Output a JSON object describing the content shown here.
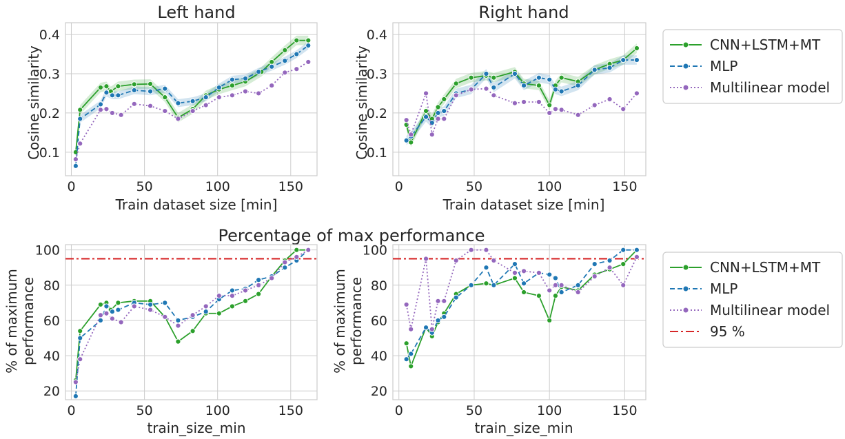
{
  "figure": {
    "suptitle": "Percentage of max performance",
    "legend_top": [
      "CNN+LSTM+MT",
      "MLP",
      "Multilinear model"
    ],
    "legend_bottom": [
      "CNN+LSTM+MT",
      "MLP",
      "Multilinear model",
      "95 %"
    ]
  },
  "colors": {
    "cnn": "#2ca02c",
    "mlp": "#1f77b4",
    "multilinear": "#9467bd",
    "threshold": "#d62728",
    "grid": "#cccccc",
    "text": "#262626"
  },
  "chart_data": [
    {
      "type": "line",
      "title": "Left hand",
      "xlabel": "Train dataset size [min]",
      "ylabel": "Cosine similarity",
      "xlim": [
        -4,
        168
      ],
      "ylim": [
        0.04,
        0.43
      ],
      "xticks": [
        0,
        50,
        100,
        150
      ],
      "yticks": [
        0.1,
        0.2,
        0.3,
        0.4
      ],
      "grid": true,
      "legend": "outside-right",
      "series": [
        {
          "name": "CNN+LSTM+MT",
          "style": "solid",
          "band": 0.012,
          "x": [
            3,
            6,
            20,
            24,
            27,
            32,
            43,
            54,
            64,
            73,
            83,
            92,
            101,
            110,
            119,
            130,
            137,
            146,
            154,
            162
          ],
          "y": [
            0.1,
            0.208,
            0.265,
            0.268,
            0.255,
            0.268,
            0.273,
            0.274,
            0.24,
            0.188,
            0.21,
            0.245,
            0.26,
            0.27,
            0.28,
            0.305,
            0.33,
            0.36,
            0.385,
            0.385
          ]
        },
        {
          "name": "MLP",
          "style": "dashed",
          "band": 0.01,
          "x": [
            3,
            6,
            20,
            24,
            28,
            32,
            43,
            54,
            64,
            73,
            83,
            92,
            101,
            110,
            119,
            128,
            137,
            146,
            154,
            162
          ],
          "y": [
            0.065,
            0.185,
            0.222,
            0.252,
            0.245,
            0.245,
            0.258,
            0.255,
            0.262,
            0.225,
            0.23,
            0.24,
            0.265,
            0.285,
            0.288,
            0.305,
            0.318,
            0.333,
            0.35,
            0.372
          ]
        },
        {
          "name": "Multilinear model",
          "style": "dotted",
          "x": [
            3,
            6,
            20,
            24,
            28,
            34,
            43,
            54,
            64,
            73,
            83,
            92,
            101,
            110,
            119,
            128,
            137,
            146,
            154,
            162
          ],
          "y": [
            0.082,
            0.122,
            0.208,
            0.21,
            0.2,
            0.195,
            0.223,
            0.218,
            0.205,
            0.185,
            0.205,
            0.22,
            0.24,
            0.245,
            0.255,
            0.25,
            0.27,
            0.303,
            0.312,
            0.33
          ]
        }
      ]
    },
    {
      "type": "line",
      "title": "Right hand",
      "xlabel": "Train dataset size [min]",
      "ylabel": "Cosine similarity",
      "xlim": [
        -4,
        164
      ],
      "ylim": [
        0.04,
        0.43
      ],
      "xticks": [
        0,
        50,
        100,
        150
      ],
      "yticks": [
        0.1,
        0.2,
        0.3,
        0.4
      ],
      "grid": true,
      "legend": "top-right-outside",
      "series": [
        {
          "name": "CNN+LSTM+MT",
          "style": "solid",
          "band": 0.012,
          "x": [
            5,
            8,
            18,
            22,
            26,
            30,
            38,
            48,
            58,
            63,
            77,
            83,
            93,
            100,
            104,
            108,
            119,
            130,
            140,
            149,
            158
          ],
          "y": [
            0.17,
            0.125,
            0.205,
            0.185,
            0.215,
            0.235,
            0.275,
            0.29,
            0.295,
            0.29,
            0.305,
            0.275,
            0.27,
            0.22,
            0.27,
            0.29,
            0.28,
            0.31,
            0.325,
            0.335,
            0.365
          ]
        },
        {
          "name": "MLP",
          "style": "dashed",
          "band": 0.012,
          "x": [
            5,
            8,
            18,
            22,
            26,
            30,
            38,
            48,
            58,
            63,
            77,
            83,
            93,
            100,
            104,
            108,
            119,
            130,
            140,
            149,
            158
          ],
          "y": [
            0.13,
            0.14,
            0.19,
            0.175,
            0.2,
            0.205,
            0.25,
            0.26,
            0.3,
            0.265,
            0.3,
            0.27,
            0.29,
            0.285,
            0.26,
            0.255,
            0.27,
            0.31,
            0.315,
            0.335,
            0.335
          ]
        },
        {
          "name": "Multilinear model",
          "style": "dotted",
          "x": [
            5,
            8,
            18,
            22,
            26,
            30,
            38,
            48,
            58,
            63,
            77,
            83,
            93,
            100,
            104,
            108,
            119,
            130,
            140,
            149,
            158
          ],
          "y": [
            0.182,
            0.145,
            0.25,
            0.145,
            0.185,
            0.185,
            0.245,
            0.26,
            0.262,
            0.245,
            0.225,
            0.228,
            0.228,
            0.2,
            0.21,
            0.208,
            0.195,
            0.22,
            0.235,
            0.21,
            0.25
          ]
        }
      ]
    },
    {
      "type": "line",
      "title": "",
      "xlabel": "train_size_min",
      "ylabel": "% of maximum performance",
      "xlim": [
        -4,
        168
      ],
      "ylim": [
        15,
        103
      ],
      "xticks": [
        0,
        50,
        100,
        150
      ],
      "yticks": [
        20,
        40,
        60,
        80,
        100
      ],
      "grid": true,
      "hline": 95,
      "legend": "outside-right",
      "series": [
        {
          "name": "CNN+LSTM+MT",
          "style": "solid",
          "x": [
            3,
            6,
            20,
            24,
            27,
            32,
            43,
            54,
            64,
            73,
            83,
            92,
            101,
            110,
            119,
            128,
            137,
            146,
            154,
            162
          ],
          "y": [
            26,
            54,
            69,
            70,
            66,
            70,
            71,
            71,
            62,
            48,
            54,
            64,
            64,
            68,
            71,
            75,
            85,
            94,
            100,
            100
          ]
        },
        {
          "name": "MLP",
          "style": "dashed",
          "x": [
            3,
            6,
            20,
            24,
            28,
            32,
            43,
            54,
            64,
            73,
            83,
            92,
            101,
            110,
            119,
            128,
            137,
            146,
            154,
            162
          ],
          "y": [
            17,
            50,
            60,
            68,
            65,
            66,
            70,
            69,
            70,
            60,
            62,
            65,
            72,
            77,
            78,
            83,
            85,
            90,
            94,
            100
          ]
        },
        {
          "name": "Multilinear model",
          "style": "dotted",
          "x": [
            3,
            6,
            20,
            24,
            28,
            34,
            43,
            54,
            64,
            73,
            83,
            92,
            101,
            110,
            119,
            128,
            137,
            146,
            154,
            162
          ],
          "y": [
            25,
            38,
            63,
            64,
            61,
            59,
            68,
            66,
            62,
            57,
            63,
            68,
            74,
            74,
            77,
            80,
            84,
            93,
            96,
            100
          ]
        }
      ]
    },
    {
      "type": "line",
      "title": "",
      "xlabel": "train_size_min",
      "ylabel": "% of maximum performance",
      "xlim": [
        -4,
        164
      ],
      "ylim": [
        15,
        103
      ],
      "xticks": [
        0,
        50,
        100,
        150
      ],
      "yticks": [
        20,
        40,
        60,
        80,
        100
      ],
      "grid": true,
      "hline": 95,
      "legend": "outside-right",
      "series": [
        {
          "name": "CNN+LSTM+MT",
          "style": "solid",
          "x": [
            5,
            8,
            18,
            22,
            26,
            30,
            38,
            48,
            58,
            63,
            77,
            83,
            93,
            100,
            104,
            108,
            119,
            130,
            140,
            149,
            158
          ],
          "y": [
            47,
            34,
            56,
            51,
            59,
            64,
            75,
            80,
            81,
            80,
            84,
            76,
            74,
            60,
            74,
            79,
            77,
            86,
            89,
            92,
            100
          ]
        },
        {
          "name": "MLP",
          "style": "dashed",
          "x": [
            5,
            8,
            18,
            22,
            26,
            30,
            38,
            48,
            58,
            63,
            77,
            83,
            93,
            100,
            104,
            108,
            119,
            130,
            140,
            149,
            158
          ],
          "y": [
            38,
            41,
            56,
            53,
            60,
            62,
            73,
            80,
            90,
            80,
            92,
            81,
            87,
            86,
            84,
            76,
            80,
            92,
            94,
            100,
            100
          ]
        },
        {
          "name": "Multilinear model",
          "style": "dotted",
          "x": [
            5,
            8,
            18,
            22,
            26,
            30,
            38,
            48,
            58,
            63,
            77,
            83,
            93,
            100,
            104,
            108,
            119,
            130,
            140,
            149,
            158
          ],
          "y": [
            69,
            55,
            95,
            55,
            71,
            71,
            94,
            100,
            100,
            94,
            87,
            88,
            87,
            77,
            80,
            80,
            76,
            85,
            90,
            80,
            96
          ]
        }
      ]
    }
  ]
}
